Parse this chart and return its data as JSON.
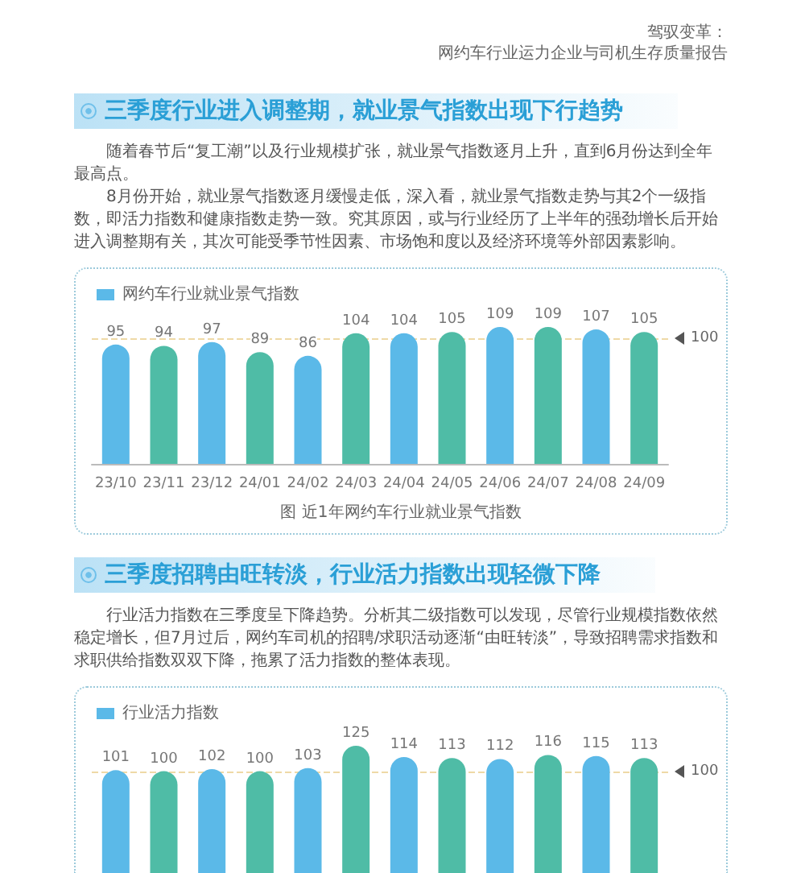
{
  "chart_data": [
    {
      "type": "bar",
      "title": "三季度行业进入调整期，就业景气指数出现下行趋势",
      "annotations": [
        "驾驭变革：",
        "网约车行业运力企业与司机生存质量报告",
        "随着春节后“复工潮”以及行业规模扩张，就业景气指数逐月上升，直到6月份达到全年最高点。",
        "8月份开始，就业景气指数逐月缓慢走低，深入看，就业景气指数走势与其2个一级指数，即活力指数和健康指数走势一致。究其原因，或与行业经历了上半年的强劲增长后开始进入调整期有关，其次可能受季节性因素、市场饱和度以及经济环境等外部因素影响。",
        "图 近1年网约车行业就业景气指数"
      ],
      "categories": [
        "23/10",
        "23/11",
        "23/12",
        "24/01",
        "24/02",
        "24/03",
        "24/04",
        "24/05",
        "24/06",
        "24/07",
        "24/08",
        "24/09"
      ],
      "series": [
        {
          "name": "网约车行业就业景气指数",
          "color": "#5bb9e8",
          "colors": [
            "#5bb9e8",
            "#4fbca6",
            "#5bb9e8",
            "#4fbca6",
            "#5bb9e8",
            "#4fbca6",
            "#5bb9e8",
            "#4fbca6",
            "#5bb9e8",
            "#4fbca6",
            "#5bb9e8",
            "#4fbca6"
          ],
          "values": [
            95,
            94,
            97,
            89,
            86,
            104,
            104,
            105,
            109,
            109,
            107,
            105
          ]
        }
      ],
      "data_labels": true,
      "ref_lines": [
        {
          "axis": "y",
          "value": 100,
          "label": "100",
          "color": "#eed9a6",
          "line_style": "dashed"
        }
      ],
      "legend": "top left"
    },
    {
      "type": "bar",
      "title": "三季度招聘由旺转淡，行业活力指数出现轻微下降",
      "annotations": [
        "行业活力指数在三季度呈下降趋势。分析其二级指数可以发现，尽管行业规模指数依然稳定增长，但7月过后，网约车司机的招聘/求职活动逐渐“由旺转淡”，导致招聘需求指数和求职供给指数双双下降，拖累了活力指数的整体表现。"
      ],
      "categories": [
        null,
        null,
        null,
        null,
        null,
        null,
        null,
        null,
        null,
        null,
        null,
        null
      ],
      "series": [
        {
          "name": "行业活力指数",
          "color": "#5bb9e8",
          "colors": [
            "#5bb9e8",
            "#4fbca6",
            "#5bb9e8",
            "#4fbca6",
            "#5bb9e8",
            "#4fbca6",
            "#5bb9e8",
            "#4fbca6",
            "#5bb9e8",
            "#4fbca6",
            "#5bb9e8",
            "#4fbca6"
          ],
          "values": [
            101,
            100,
            102,
            100,
            103,
            125,
            114,
            113,
            112,
            116,
            115,
            113
          ]
        }
      ],
      "data_labels": true,
      "ref_lines": [
        {
          "axis": "y",
          "value": 100,
          "label": "100",
          "color": "#eed9a6",
          "line_style": "dashed"
        }
      ],
      "legend": "top left"
    }
  ]
}
